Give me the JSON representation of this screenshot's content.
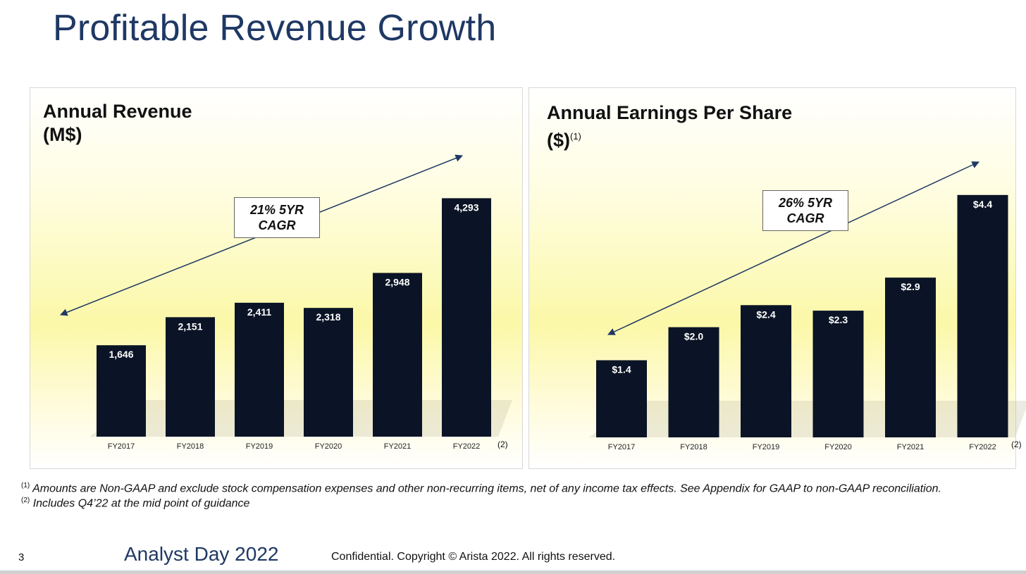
{
  "slide": {
    "title": "Profitable Revenue Growth",
    "footnote1_marker": "(1)",
    "footnote1": "Amounts are Non-GAAP and exclude stock compensation expenses and other non-recurring items, net of any income tax effects.  See Appendix for GAAP to non-GAAP reconciliation.",
    "footnote2_marker": "(2)",
    "footnote2": "Includes Q4’22 at the mid point of guidance",
    "page_number": "3",
    "event": "Analyst Day 2022",
    "copyright": "Confidential. Copyright © Arista 2022. All rights reserved."
  },
  "colors": {
    "title": "#1f3864",
    "bar": "#0b1426",
    "arrow": "#1f3864"
  },
  "chart_data": [
    {
      "type": "bar",
      "title_line1": "Annual Revenue",
      "title_line2": "(M$)",
      "categories": [
        "FY2017",
        "FY2018",
        "FY2019",
        "FY2020",
        "FY2021",
        "FY2022"
      ],
      "values": [
        1646,
        2151,
        2411,
        2318,
        2948,
        4293
      ],
      "labels": [
        "1,646",
        "2,151",
        "2,411",
        "2,318",
        "2,948",
        "4,293"
      ],
      "ylim": [
        0,
        4400
      ],
      "cagr_line1": "21% 5YR",
      "cagr_line2": "CAGR",
      "last_note": "(2)"
    },
    {
      "type": "bar",
      "title_line1": "Annual Earnings Per Share",
      "title_line2": "($)",
      "title_note": "(1)",
      "categories": [
        "FY2017",
        "FY2018",
        "FY2019",
        "FY2020",
        "FY2021",
        "FY2022"
      ],
      "values": [
        1.4,
        2.0,
        2.4,
        2.3,
        2.9,
        4.4
      ],
      "labels": [
        "$1.4",
        "$2.0",
        "$2.4",
        "$2.3",
        "$2.9",
        "$4.4"
      ],
      "ylim": [
        0,
        4.5
      ],
      "cagr_line1": "26% 5YR",
      "cagr_line2": "CAGR",
      "last_note": "(2)"
    }
  ]
}
